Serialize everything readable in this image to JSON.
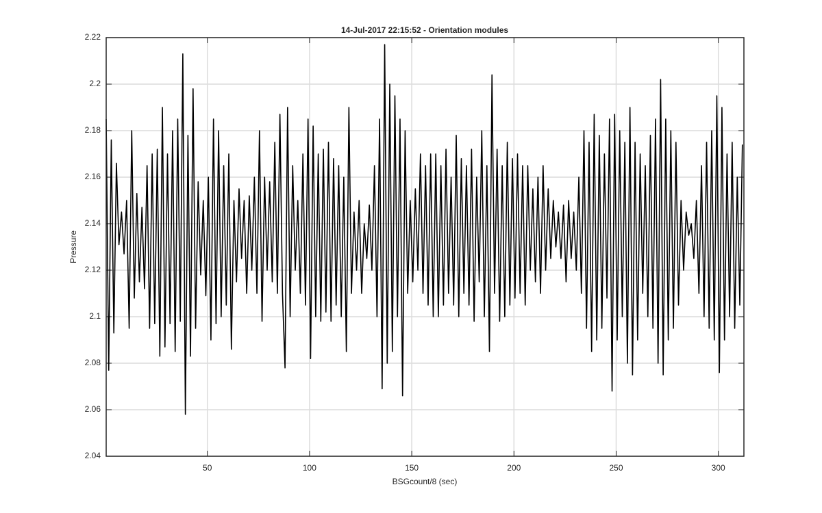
{
  "chart_data": {
    "type": "line",
    "title": "14-Jul-2017 22:15:52 - Orientation modules",
    "x_label": "BSGcount/8 (sec)",
    "y_label": "Pressure",
    "xlim": [
      0.5,
      312.5
    ],
    "xticks": [
      50,
      100,
      150,
      200,
      250,
      300
    ],
    "ylim": [
      2.04,
      2.22
    ],
    "yticks": [
      2.04,
      2.06,
      2.08,
      2.1,
      2.12,
      2.14,
      2.16,
      2.18,
      2.2,
      2.22
    ],
    "grid": true,
    "x": [
      0.5,
      1.75,
      3,
      4.25,
      5.5,
      6.75,
      8,
      9.25,
      10.5,
      11.75,
      13,
      14.25,
      15.5,
      16.75,
      18,
      19.25,
      20.5,
      21.75,
      23,
      24.25,
      25.5,
      26.75,
      28,
      29.25,
      30.5,
      31.75,
      33,
      34.25,
      35.5,
      36.75,
      38,
      39.25,
      40.5,
      41.75,
      43,
      44.25,
      45.5,
      46.75,
      48,
      49.25,
      50.5,
      51.75,
      53,
      54.25,
      55.5,
      56.75,
      58,
      59.25,
      60.5,
      61.75,
      63,
      64.25,
      65.5,
      66.75,
      68,
      69.25,
      70.5,
      71.75,
      73,
      74.25,
      75.5,
      76.75,
      78,
      79.25,
      80.5,
      81.75,
      83,
      84.25,
      85.5,
      86.75,
      88,
      89.25,
      90.5,
      91.75,
      93,
      94.25,
      95.5,
      96.75,
      98,
      99.25,
      100.5,
      101.75,
      103,
      104.25,
      105.5,
      106.75,
      108,
      109.25,
      110.5,
      111.75,
      113,
      114.25,
      115.5,
      116.75,
      118,
      119.25,
      120.5,
      121.75,
      123,
      124.25,
      125.5,
      126.75,
      128,
      129.25,
      130.5,
      131.75,
      133,
      134.25,
      135.5,
      136.75,
      138,
      139.25,
      140.5,
      141.75,
      143,
      144.25,
      145.5,
      146.75,
      148,
      149.25,
      150.5,
      151.75,
      153,
      154.25,
      155.5,
      156.75,
      158,
      159.25,
      160.5,
      161.75,
      163,
      164.25,
      165.5,
      166.75,
      168,
      169.25,
      170.5,
      171.75,
      173,
      174.25,
      175.5,
      176.75,
      178,
      179.25,
      180.5,
      181.75,
      183,
      184.25,
      185.5,
      186.75,
      188,
      189.25,
      190.5,
      191.75,
      193,
      194.25,
      195.5,
      196.75,
      198,
      199.25,
      200.5,
      201.75,
      203,
      204.25,
      205.5,
      206.75,
      208,
      209.25,
      210.5,
      211.75,
      213,
      214.25,
      215.5,
      216.75,
      218,
      219.25,
      220.5,
      221.75,
      223,
      224.25,
      225.5,
      226.75,
      228,
      229.25,
      230.5,
      231.75,
      233,
      234.25,
      235.5,
      236.75,
      238,
      239.25,
      240.5,
      241.75,
      243,
      244.25,
      245.5,
      246.75,
      248,
      249.25,
      250.5,
      251.75,
      253,
      254.25,
      255.5,
      256.75,
      258,
      259.25,
      260.5,
      261.75,
      263,
      264.25,
      265.5,
      266.75,
      268,
      269.25,
      270.5,
      271.75,
      273,
      274.25,
      275.5,
      276.75,
      278,
      279.25,
      280.5,
      281.75,
      283,
      284.25,
      285.5,
      286.75,
      288,
      289.25,
      290.5,
      291.75,
      293,
      294.25,
      295.5,
      296.75,
      298,
      299.25,
      300.5,
      301.75,
      303,
      304.25,
      305.5,
      306.75,
      308,
      309.25,
      310.5,
      311.75
    ],
    "series": [
      {
        "color": "#000000",
        "values": [
          2.185,
          2.077,
          2.176,
          2.093,
          2.166,
          2.131,
          2.145,
          2.127,
          2.15,
          2.095,
          2.18,
          2.108,
          2.153,
          2.115,
          2.147,
          2.112,
          2.165,
          2.095,
          2.17,
          2.097,
          2.172,
          2.083,
          2.19,
          2.087,
          2.17,
          2.097,
          2.18,
          2.085,
          2.185,
          2.098,
          2.213,
          2.058,
          2.178,
          2.083,
          2.198,
          2.095,
          2.158,
          2.118,
          2.15,
          2.109,
          2.16,
          2.09,
          2.185,
          2.097,
          2.18,
          2.1,
          2.165,
          2.105,
          2.17,
          2.086,
          2.15,
          2.115,
          2.155,
          2.125,
          2.15,
          2.11,
          2.152,
          2.12,
          2.16,
          2.11,
          2.18,
          2.098,
          2.16,
          2.12,
          2.158,
          2.115,
          2.175,
          2.11,
          2.187,
          2.11,
          2.078,
          2.19,
          2.1,
          2.165,
          2.12,
          2.15,
          2.11,
          2.17,
          2.105,
          2.185,
          2.082,
          2.182,
          2.1,
          2.17,
          2.098,
          2.172,
          2.102,
          2.175,
          2.098,
          2.168,
          2.105,
          2.165,
          2.1,
          2.16,
          2.085,
          2.19,
          2.11,
          2.145,
          2.12,
          2.15,
          2.11,
          2.14,
          2.125,
          2.148,
          2.12,
          2.165,
          2.1,
          2.185,
          2.069,
          2.217,
          2.08,
          2.2,
          2.085,
          2.195,
          2.1,
          2.185,
          2.066,
          2.18,
          2.11,
          2.15,
          2.115,
          2.155,
          2.12,
          2.17,
          2.11,
          2.165,
          2.105,
          2.17,
          2.1,
          2.17,
          2.1,
          2.165,
          2.105,
          2.172,
          2.11,
          2.16,
          2.105,
          2.178,
          2.1,
          2.168,
          2.11,
          2.165,
          2.105,
          2.172,
          2.098,
          2.16,
          2.115,
          2.18,
          2.1,
          2.165,
          2.085,
          2.204,
          2.11,
          2.172,
          2.098,
          2.165,
          2.1,
          2.175,
          2.105,
          2.168,
          2.108,
          2.17,
          2.11,
          2.165,
          2.105,
          2.165,
          2.12,
          2.155,
          2.115,
          2.16,
          2.11,
          2.165,
          2.12,
          2.155,
          2.125,
          2.15,
          2.13,
          2.145,
          2.125,
          2.148,
          2.115,
          2.15,
          2.125,
          2.145,
          2.12,
          2.16,
          2.11,
          2.18,
          2.095,
          2.175,
          2.085,
          2.187,
          2.09,
          2.178,
          2.095,
          2.17,
          2.108,
          2.185,
          2.068,
          2.187,
          2.09,
          2.18,
          2.1,
          2.175,
          2.08,
          2.19,
          2.075,
          2.175,
          2.09,
          2.17,
          2.11,
          2.165,
          2.1,
          2.178,
          2.095,
          2.185,
          2.08,
          2.202,
          2.075,
          2.185,
          2.09,
          2.18,
          2.095,
          2.175,
          2.105,
          2.15,
          2.12,
          2.145,
          2.135,
          2.14,
          2.125,
          2.15,
          2.11,
          2.165,
          2.1,
          2.175,
          2.095,
          2.18,
          2.09,
          2.195,
          2.076,
          2.19,
          2.09,
          2.17,
          2.1,
          2.175,
          2.095,
          2.16,
          2.105,
          2.174
        ]
      }
    ]
  }
}
